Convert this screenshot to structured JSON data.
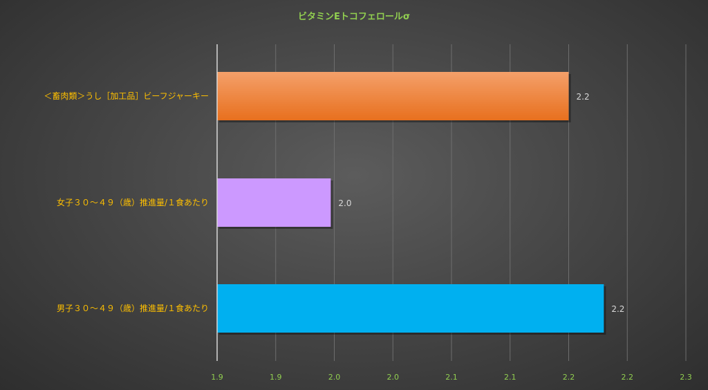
{
  "chart_data": {
    "type": "bar",
    "orientation": "horizontal",
    "title": "ビタミンEトコフェロールσ",
    "categories": [
      "＜畜肉類＞うし［加工品］ビーフジャーキー",
      "女子３０～４９（歳）推進量/１食あたり",
      "男子３０～４９（歳）推進量/１食あたり"
    ],
    "values": [
      2.2,
      1.997,
      2.23
    ],
    "data_labels": [
      "2.2",
      "2.0",
      "2.2"
    ],
    "xlim": [
      1.9,
      2.3
    ],
    "ticks": [
      "1.9",
      "1.9",
      "2.0",
      "2.0",
      "2.1",
      "2.1",
      "2.2",
      "2.2",
      "2.3"
    ],
    "grid": true,
    "legend": "none",
    "colors": [
      "#ed7d31",
      "#cc99ff",
      "#00b0f0"
    ]
  }
}
